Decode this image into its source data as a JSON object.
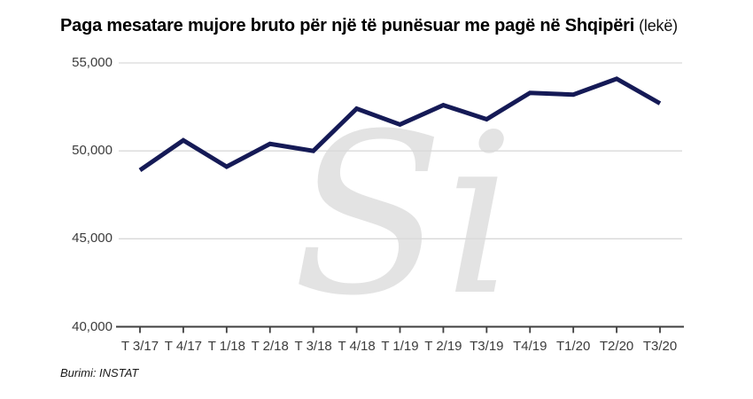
{
  "page": {
    "title_main": "Paga mesatare mujore bruto për një të punësuar me pagë në Shqipëri",
    "title_unit": "(lekë)",
    "source": "Burimi: INSTAT",
    "watermark": "Si"
  },
  "chart_data": {
    "type": "line",
    "title": "Paga mesatare mujore bruto për një të punësuar me pagë në Shqipëri (lekë)",
    "categories": [
      "T 3/17",
      "T 4/17",
      "T 1/18",
      "T 2/18",
      "T 3/18",
      "T 4/18",
      "T 1/19",
      "T 2/19",
      "T3/19",
      "T4/19",
      "T1/20",
      "T2/20",
      "T3/20"
    ],
    "values": [
      48900,
      50600,
      49100,
      50400,
      50000,
      52400,
      51500,
      52600,
      51800,
      53300,
      53200,
      54100,
      52700
    ],
    "series_name": "Paga mesatare mujore bruto (lekë)",
    "xlabel": "",
    "ylabel": "",
    "ylim": [
      40000,
      55000
    ],
    "yticks": [
      40000,
      45000,
      50000,
      55000
    ],
    "ytick_labels": [
      "40,000",
      "45,000",
      "50,000",
      "55,000"
    ],
    "grid": true,
    "legend_position": "none",
    "source": "Burimi: INSTAT",
    "watermark_text": "Si"
  },
  "colors": {
    "line": "#151a56",
    "grid": "#d9d9d9",
    "axis": "#3f3f3f",
    "tick_text": "#3c3c3c",
    "title": "#000000",
    "watermark": "#e3e3e3"
  }
}
